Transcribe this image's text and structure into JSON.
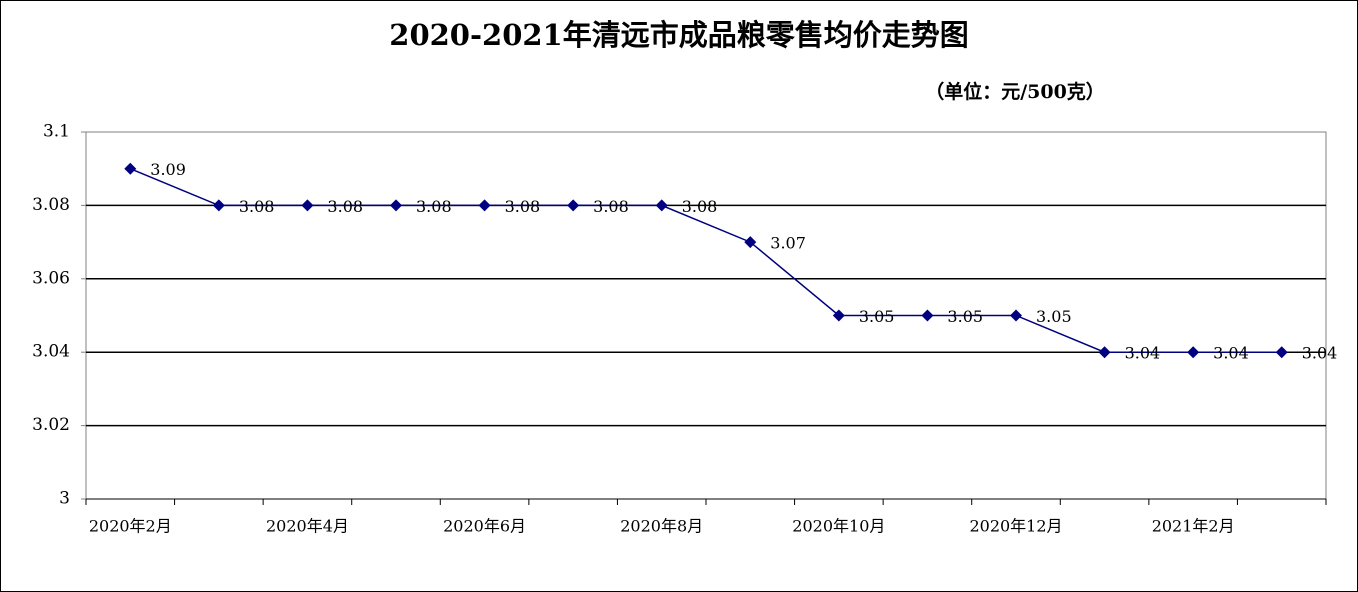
{
  "chart_data": {
    "type": "line",
    "title": "2020-2021年清远市成品粮零售均价走势图",
    "subtitle": "（单位：元/500克）",
    "categories": [
      "2020年2月",
      null,
      "2020年4月",
      null,
      "2020年6月",
      null,
      "2020年8月",
      null,
      "2020年10月",
      null,
      "2020年12月",
      null,
      "2021年2月",
      null
    ],
    "series": [
      {
        "color": "#000080",
        "values": [
          3.09,
          3.08,
          3.08,
          3.08,
          3.08,
          3.08,
          3.08,
          3.07,
          3.05,
          3.05,
          3.05,
          3.04,
          3.04,
          3.04
        ]
      }
    ],
    "ylim": [
      3,
      3.1
    ],
    "yticks": [
      3,
      3.02,
      3.04,
      3.06,
      3.08,
      3.1
    ],
    "grid": true
  }
}
